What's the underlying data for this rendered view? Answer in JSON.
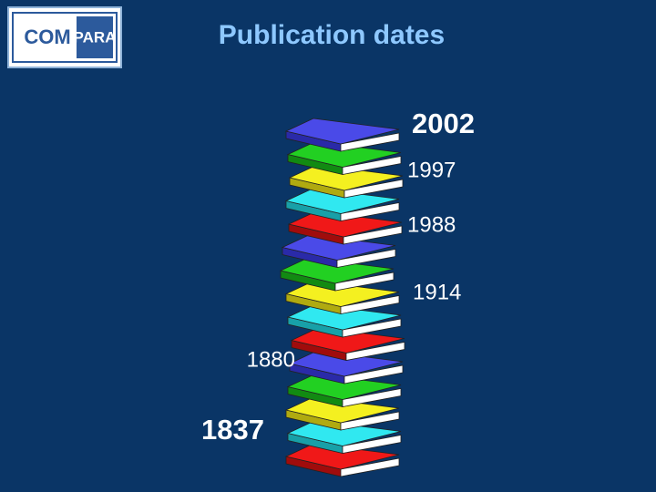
{
  "logo": {
    "left": "COM",
    "right": "PARA"
  },
  "title": "Publication dates",
  "labels": [
    "2002",
    "1997",
    "1988",
    "1914",
    "1880",
    "1837"
  ]
}
